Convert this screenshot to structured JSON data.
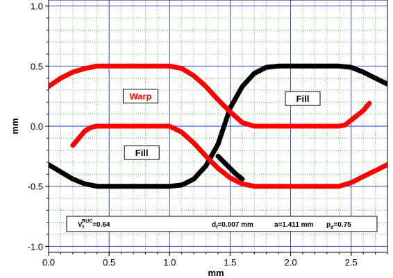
{
  "chart_data": {
    "type": "line",
    "xlabel": "mm",
    "ylabel": "mm",
    "xlim": [
      0.0,
      2.8
    ],
    "ylim": [
      -1.05,
      1.05
    ],
    "xticks": [
      "0.0",
      "0.5",
      "1.0",
      "1.5",
      "2.0",
      "2.5"
    ],
    "xtick_values": [
      0.0,
      0.5,
      1.0,
      1.5,
      2.0,
      2.5
    ],
    "yticks": [
      "1.0",
      "0.5",
      "0.0",
      "-0.5",
      "-1.0"
    ],
    "ytick_values": [
      1.0,
      0.5,
      0.0,
      -0.5,
      -1.0
    ],
    "grid": true,
    "series": [
      {
        "color": "#000000",
        "x": [
          0.0,
          0.1,
          0.2,
          0.3,
          0.4,
          0.5,
          0.6,
          0.7,
          0.8,
          0.9,
          1.0,
          1.1,
          1.2,
          1.3,
          1.4,
          1.5,
          1.6,
          1.7,
          1.8,
          1.9,
          2.0,
          2.1,
          2.2,
          2.3,
          2.4,
          2.5,
          2.6,
          2.7,
          2.8
        ],
        "y": [
          -0.32,
          -0.38,
          -0.44,
          -0.48,
          -0.5,
          -0.5,
          -0.5,
          -0.5,
          -0.5,
          -0.5,
          -0.5,
          -0.49,
          -0.44,
          -0.33,
          -0.15,
          0.15,
          0.33,
          0.44,
          0.49,
          0.5,
          0.5,
          0.5,
          0.5,
          0.5,
          0.5,
          0.49,
          0.45,
          0.4,
          0.35
        ]
      },
      {
        "color": "#000000",
        "x": [
          1.4,
          1.45,
          1.5,
          1.55,
          1.6
        ],
        "y": [
          -0.25,
          -0.3,
          -0.35,
          -0.4,
          -0.44
        ]
      },
      {
        "color": "#ff0000",
        "x": [
          0.0,
          0.1,
          0.2,
          0.3,
          0.4,
          0.5,
          0.6,
          0.7,
          0.8,
          0.9,
          1.0,
          1.1,
          1.2,
          1.3,
          1.4,
          1.5,
          1.6,
          1.7,
          1.8,
          1.9,
          2.0,
          2.1,
          2.2,
          2.3,
          2.4,
          2.45,
          2.5,
          2.6,
          2.65
        ],
        "y": [
          0.33,
          0.4,
          0.45,
          0.48,
          0.5,
          0.5,
          0.5,
          0.5,
          0.5,
          0.5,
          0.5,
          0.48,
          0.42,
          0.33,
          0.22,
          0.12,
          0.03,
          -0.0,
          0.0,
          0.0,
          0.0,
          0.0,
          0.0,
          0.0,
          0.0,
          0.01,
          0.05,
          0.13,
          0.19
        ]
      },
      {
        "color": "#ff0000",
        "x": [
          0.2,
          0.25,
          0.3,
          0.35,
          0.4,
          0.5,
          0.6,
          0.7,
          0.8,
          0.9,
          1.0,
          1.1,
          1.2,
          1.3,
          1.4,
          1.5,
          1.6,
          1.7,
          1.8,
          1.9,
          2.0,
          2.1,
          2.2,
          2.3,
          2.4,
          2.5,
          2.6,
          2.7,
          2.8
        ],
        "y": [
          -0.16,
          -0.1,
          -0.04,
          -0.01,
          0.0,
          0.0,
          0.0,
          0.0,
          0.0,
          0.0,
          0.0,
          -0.05,
          -0.14,
          -0.25,
          -0.35,
          -0.43,
          -0.48,
          -0.5,
          -0.5,
          -0.5,
          -0.5,
          -0.5,
          -0.5,
          -0.5,
          -0.5,
          -0.47,
          -0.42,
          -0.37,
          -0.32
        ]
      }
    ],
    "annotations": [
      {
        "text": "Warp",
        "x": 0.76,
        "y": 0.25,
        "color": "#ff0000"
      },
      {
        "text": "Fill",
        "x": 2.1,
        "y": 0.23,
        "color": "#000000"
      },
      {
        "text": "Fill",
        "x": 0.77,
        "y": -0.22,
        "color": "#000000"
      }
    ],
    "info": {
      "vf_main": "V",
      "vf_sub": "f",
      "vf_sup": "RUC",
      "vf_value": "=0.64",
      "df_main": "d",
      "df_sub": "f",
      "df_value": "=0.007 mm",
      "a_text": "a=1.411 mm",
      "pd_main": "p",
      "pd_sub": "d",
      "pd_value": "=0.75"
    }
  }
}
